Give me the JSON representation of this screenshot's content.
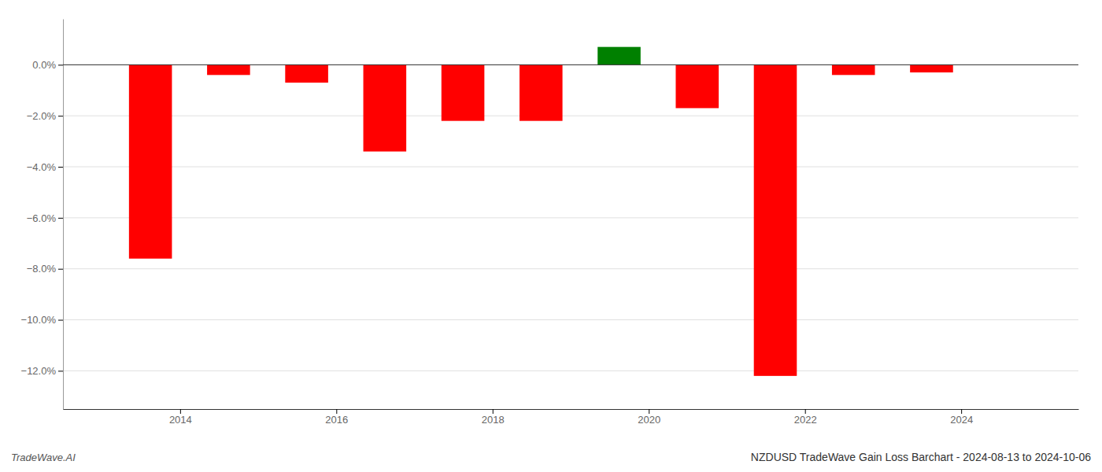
{
  "chart_data": {
    "type": "bar",
    "title": "NZDUSD TradeWave Gain Loss Barchart - 2024-08-13 to 2024-10-06",
    "annotations": [
      "TradeWave.AI"
    ],
    "x": [
      2013.62,
      2014.62,
      2015.62,
      2016.62,
      2017.62,
      2018.62,
      2019.62,
      2020.62,
      2021.62,
      2022.62,
      2023.62
    ],
    "values": [
      -0.076,
      -0.004,
      -0.007,
      -0.034,
      -0.022,
      -0.022,
      0.007,
      -0.017,
      -0.122,
      -0.004,
      -0.003
    ],
    "colors": [
      "#ff0000",
      "#ff0000",
      "#ff0000",
      "#ff0000",
      "#ff0000",
      "#ff0000",
      "#008000",
      "#ff0000",
      "#ff0000",
      "#ff0000",
      "#ff0000"
    ],
    "xlim": [
      2012.5,
      2025.5
    ],
    "xticks": [
      2014,
      2016,
      2018,
      2020,
      2022,
      2024
    ],
    "ylim": [
      -0.135,
      0.018
    ],
    "yticks": [
      {
        "value": -0.12,
        "label": "−12.0%"
      },
      {
        "value": -0.1,
        "label": "−10.0%"
      },
      {
        "value": -0.08,
        "label": "−8.0%"
      },
      {
        "value": -0.06,
        "label": "−6.0%"
      },
      {
        "value": -0.04,
        "label": "−4.0%"
      },
      {
        "value": -0.02,
        "label": "−2.0%"
      },
      {
        "value": 0.0,
        "label": "0.0%"
      }
    ],
    "grid": true
  }
}
